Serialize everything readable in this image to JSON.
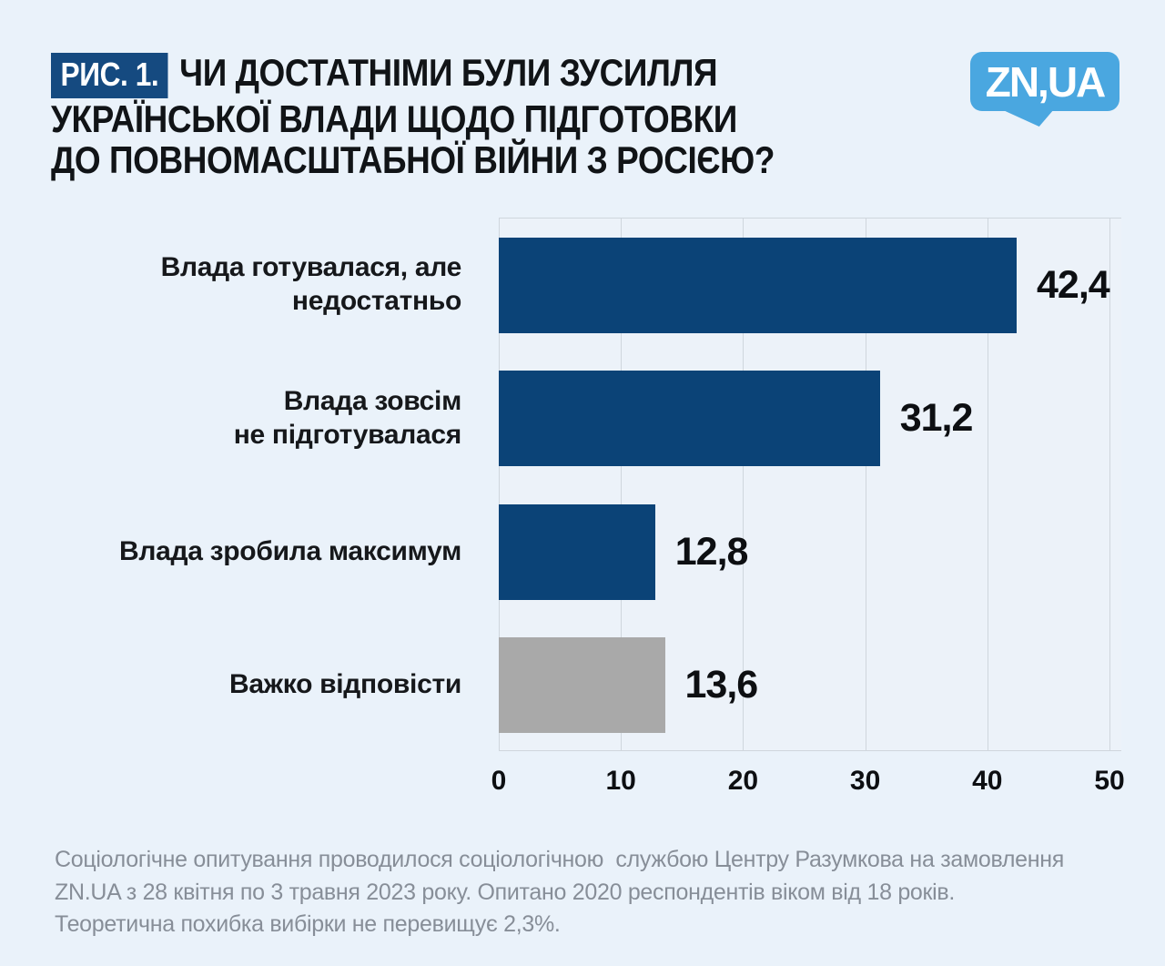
{
  "header": {
    "figure_label": "Рис. 1.",
    "title_lines": [
      "ЧИ ДОСТАТНІМИ БУЛИ ЗУСИЛЛЯ",
      "УКРАЇНСЬКОЇ ВЛАДИ ЩОДО ПІДГОТОВКИ",
      "ДО ПОВНОМАСШТАБНОЇ ВІЙНИ З РОСІЄЮ?"
    ],
    "logo_text": "ZN,UA"
  },
  "chart_data": {
    "type": "bar",
    "orientation": "horizontal",
    "categories": [
      "Влада готувалася, але недостатньо",
      "Влада зовсім не підготувалася",
      "Влада зробила максимум",
      "Важко відповісти"
    ],
    "label_lines": [
      [
        "Влада готувалася, але",
        "недостатньо"
      ],
      [
        "Влада зовсім",
        "не підготувалася"
      ],
      [
        "Влада зробила максимум"
      ],
      [
        "Важко відповісти"
      ]
    ],
    "values": [
      42.4,
      31.2,
      12.8,
      13.6
    ],
    "value_labels": [
      "42,4",
      "31,2",
      "12,8",
      "13,6"
    ],
    "bar_colors": [
      "#0b4377",
      "#0b4377",
      "#0b4377",
      "#a9a9a9"
    ],
    "xlim": [
      0,
      50
    ],
    "x_ticks": [
      0,
      10,
      20,
      30,
      40,
      50
    ],
    "grid": true,
    "legend": false,
    "title": "",
    "xlabel": "",
    "ylabel": ""
  },
  "colors": {
    "page_background": "#eaf2fa",
    "accent_navy": "#0b4377",
    "badge_navy": "#154a80",
    "neutral_gray_bar": "#a9a9a9",
    "logo_blue": "#4aa7e0",
    "gridline": "#cfd6dd",
    "footer_text": "#878e98"
  },
  "footer": {
    "lines": [
      "Соціологічне опитування проводилося соціологічною  службою Центру Разумкова на замовлення",
      "ZN.UA з 28 квітня по 3 травня 2023 року. Опитано 2020 респондентів віком від 18 років.",
      "Теоретична похибка вибірки не перевищує 2,3%."
    ]
  }
}
